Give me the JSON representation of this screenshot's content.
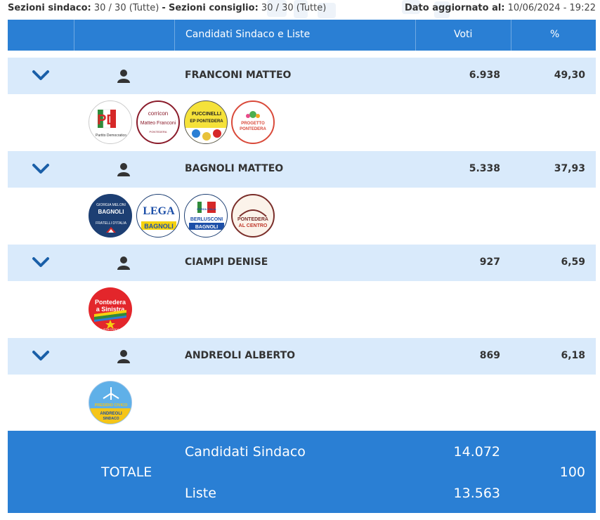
{
  "header_info": {
    "sezioni_sindaco_label": "Sezioni sindaco:",
    "sezioni_sindaco_value": "30 / 30 (Tutte)",
    "separator": "-",
    "sezioni_consiglio_label": "Sezioni consiglio:",
    "sezioni_consiglio_value": "30 / 30 (Tutte)",
    "updated_label": "Dato aggiornato al:",
    "updated_value": "10/06/2024 - 19:22"
  },
  "table_header": {
    "candidates_col": "Candidati Sindaco e Liste",
    "votes_col": "Voti",
    "percent_col": "%"
  },
  "candidates": [
    {
      "name": "FRANCONI MATTEO",
      "votes": "6.938",
      "percent": "49,30",
      "lists": [
        {
          "icon": "pd-logo-icon",
          "text_top": "PD",
          "text_bottom": "Partito Democratico"
        },
        {
          "icon": "corricon-logo-icon",
          "text_top": "corricon",
          "text_mid": "Matteo Franconi",
          "text_bottom": "PONTEDERA"
        },
        {
          "icon": "puccinelli-logo-icon",
          "text_top": "PUCCINELLI",
          "text_mid": "EP PONTEDERA"
        },
        {
          "icon": "progetto-pontedera-logo-icon",
          "text_top": "PROGETTO",
          "text_bottom": "PONTEDERA"
        }
      ]
    },
    {
      "name": "BAGNOLI MATTEO",
      "votes": "5.338",
      "percent": "37,93",
      "lists": [
        {
          "icon": "fratelli-italia-logo-icon",
          "text_top": "GIORGIA MELONI",
          "text_mid": "BAGNOLI",
          "text_bottom": "FRATELLI D'ITALIA"
        },
        {
          "icon": "lega-logo-icon",
          "text_top": "LEGA",
          "text_bottom": "BAGNOLI"
        },
        {
          "icon": "forza-italia-logo-icon",
          "text_top": "FORZA ITALIA",
          "text_mid": "BERLUSCONI",
          "text_bottom": "BAGNOLI"
        },
        {
          "icon": "pontedera-al-centro-logo-icon",
          "text_top": "PONTEDERA",
          "text_bottom": "AL CENTRO"
        }
      ]
    },
    {
      "name": "CIAMPI DENISE",
      "votes": "927",
      "percent": "6,59",
      "lists": [
        {
          "icon": "pontedera-a-sinistra-logo-icon",
          "text_top": "Pontedera",
          "text_mid": "a Sinistra",
          "text_bottom": "LISTA CIVICA"
        }
      ]
    },
    {
      "name": "ANDREOLI ALBERTO",
      "votes": "869",
      "percent": "6,18",
      "lists": [
        {
          "icon": "presidio-civico-logo-icon",
          "text_top": "PRESIDIO CIVICO",
          "text_mid": "ANDREOLI",
          "text_bottom": "SINDACO"
        }
      ]
    }
  ],
  "totals": {
    "label": "TOTALE",
    "candidates_label": "Candidati Sindaco",
    "candidates_value": "14.072",
    "lists_label": "Liste",
    "lists_value": "13.563",
    "percent": "100"
  },
  "colors": {
    "header_blue": "#2a7fd4",
    "row_light_blue": "#d9eafb",
    "chevron_blue": "#1a5fa8"
  }
}
